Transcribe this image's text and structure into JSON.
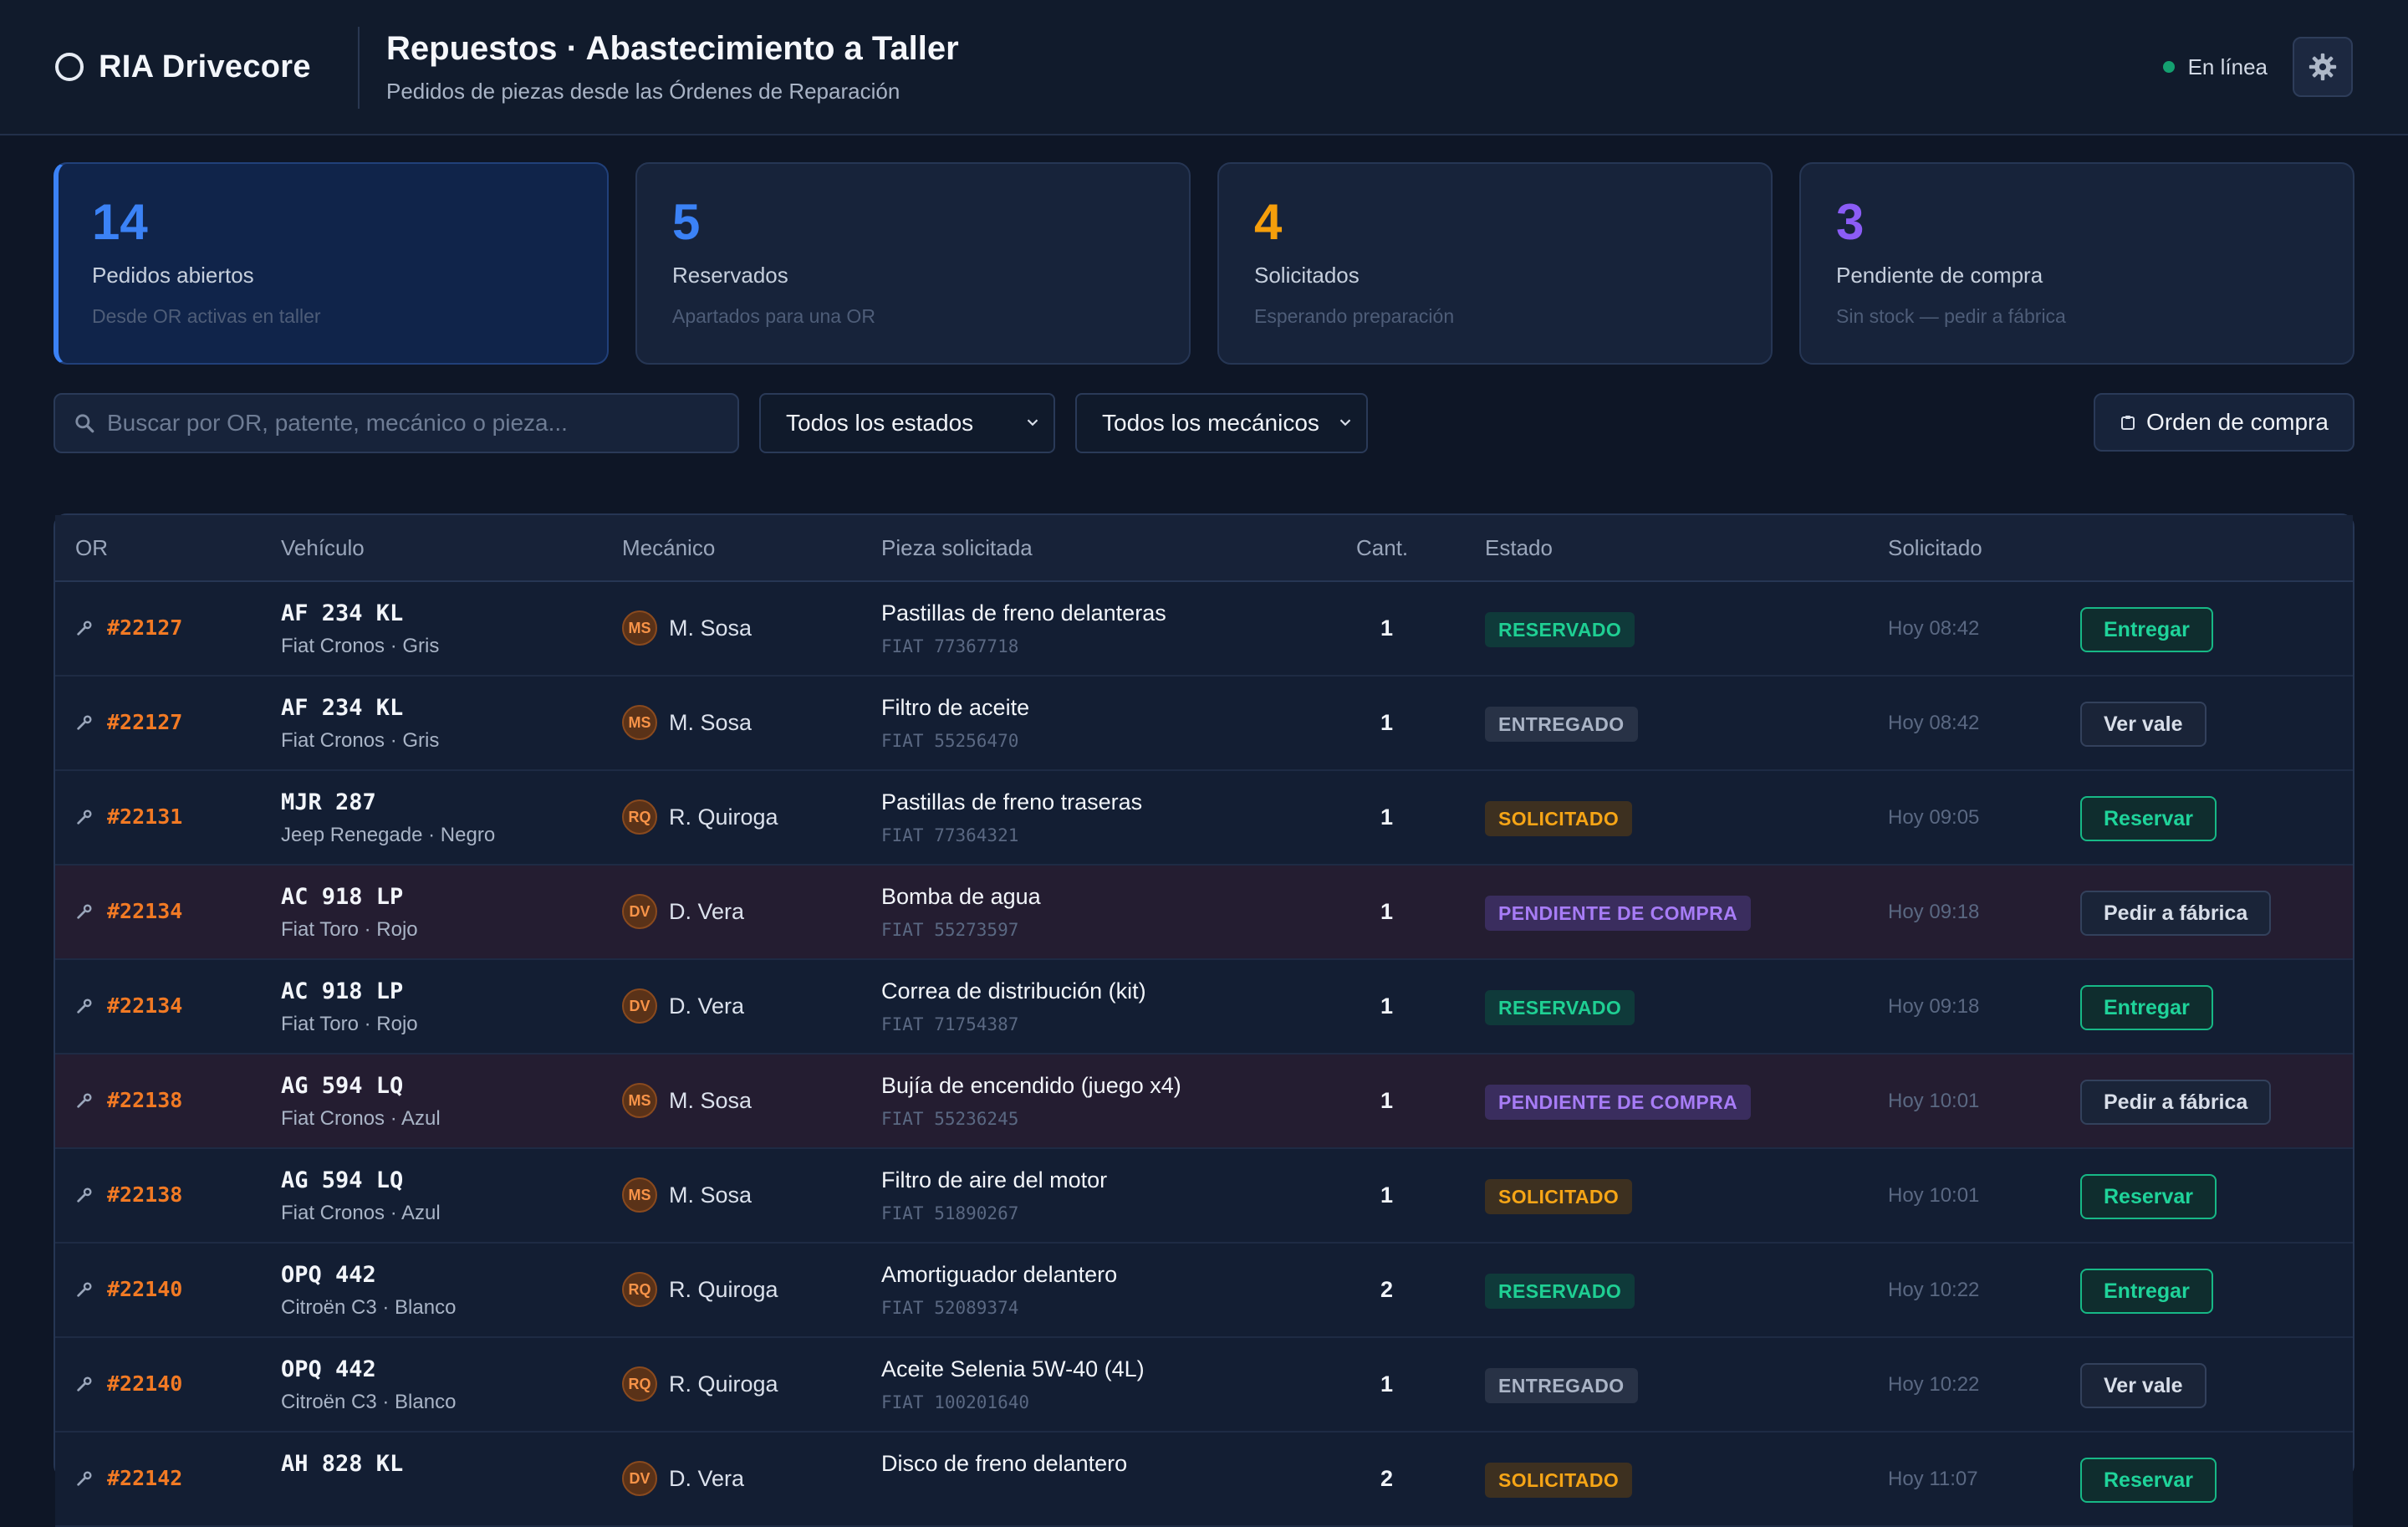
{
  "header": {
    "brand": "RIA Drivecore",
    "title": "Repuestos · Abastecimiento a Taller",
    "subtitle": "Pedidos de piezas desde las Órdenes de Reparación",
    "status": "En línea"
  },
  "kpis": [
    {
      "value": "14",
      "label": "Pedidos abiertos",
      "desc": "Desde OR activas en taller",
      "color": "#3b82f6"
    },
    {
      "value": "5",
      "label": "Reservados",
      "desc": "Apartados para una OR",
      "color": "#3b82f6"
    },
    {
      "value": "4",
      "label": "Solicitados",
      "desc": "Esperando preparación",
      "color": "#f59e0b"
    },
    {
      "value": "3",
      "label": "Pendiente de compra",
      "desc": "Sin stock — pedir a fábrica",
      "color": "#8b5cf6"
    }
  ],
  "toolbar": {
    "search_placeholder": "Buscar por OR, patente, mecánico o pieza...",
    "status_filter": "Todos los estados",
    "mechanic_filter": "Todos los mecánicos",
    "purchase_order_label": "Orden de compra"
  },
  "table": {
    "columns": {
      "or": "OR",
      "vehicle": "Vehículo",
      "mechanic": "Mecánico",
      "part": "Pieza solicitada",
      "qty": "Cant.",
      "status": "Estado",
      "requested": "Solicitado"
    },
    "rows": [
      {
        "or": "#22127",
        "plate": "AF 234 KL",
        "vehicle": "Fiat Cronos · Gris",
        "initials": "MS",
        "mechanic": "M. Sosa",
        "part": "Pastillas de freno delanteras",
        "code": "FIAT 77367718",
        "qty": "1",
        "status": "RESERVADO",
        "kind": "reservado",
        "time": "Hoy 08:42",
        "action": "Entregar"
      },
      {
        "or": "#22127",
        "plate": "AF 234 KL",
        "vehicle": "Fiat Cronos · Gris",
        "initials": "MS",
        "mechanic": "M. Sosa",
        "part": "Filtro de aceite",
        "code": "FIAT 55256470",
        "qty": "1",
        "status": "ENTREGADO",
        "kind": "entregado",
        "time": "Hoy 08:42",
        "action": "Ver vale"
      },
      {
        "or": "#22131",
        "plate": "MJR 287",
        "vehicle": "Jeep Renegade · Negro",
        "initials": "RQ",
        "mechanic": "R. Quiroga",
        "part": "Pastillas de freno traseras",
        "code": "FIAT 77364321",
        "qty": "1",
        "status": "SOLICITADO",
        "kind": "solicitado",
        "time": "Hoy 09:05",
        "action": "Reservar"
      },
      {
        "or": "#22134",
        "plate": "AC 918 LP",
        "vehicle": "Fiat Toro · Rojo",
        "initials": "DV",
        "mechanic": "D. Vera",
        "part": "Bomba de agua",
        "code": "FIAT 55273597",
        "qty": "1",
        "status": "PENDIENTE DE COMPRA",
        "kind": "pendiente",
        "time": "Hoy 09:18",
        "action": "Pedir a fábrica"
      },
      {
        "or": "#22134",
        "plate": "AC 918 LP",
        "vehicle": "Fiat Toro · Rojo",
        "initials": "DV",
        "mechanic": "D. Vera",
        "part": "Correa de distribución (kit)",
        "code": "FIAT 71754387",
        "qty": "1",
        "status": "RESERVADO",
        "kind": "reservado",
        "time": "Hoy 09:18",
        "action": "Entregar"
      },
      {
        "or": "#22138",
        "plate": "AG 594 LQ",
        "vehicle": "Fiat Cronos · Azul",
        "initials": "MS",
        "mechanic": "M. Sosa",
        "part": "Bujía de encendido (juego x4)",
        "code": "FIAT 55236245",
        "qty": "1",
        "status": "PENDIENTE DE COMPRA",
        "kind": "pendiente",
        "time": "Hoy 10:01",
        "action": "Pedir a fábrica"
      },
      {
        "or": "#22138",
        "plate": "AG 594 LQ",
        "vehicle": "Fiat Cronos · Azul",
        "initials": "MS",
        "mechanic": "M. Sosa",
        "part": "Filtro de aire del motor",
        "code": "FIAT 51890267",
        "qty": "1",
        "status": "SOLICITADO",
        "kind": "solicitado",
        "time": "Hoy 10:01",
        "action": "Reservar"
      },
      {
        "or": "#22140",
        "plate": "OPQ 442",
        "vehicle": "Citroën C3 · Blanco",
        "initials": "RQ",
        "mechanic": "R. Quiroga",
        "part": "Amortiguador delantero",
        "code": "FIAT 52089374",
        "qty": "2",
        "status": "RESERVADO",
        "kind": "reservado",
        "time": "Hoy 10:22",
        "action": "Entregar"
      },
      {
        "or": "#22140",
        "plate": "OPQ 442",
        "vehicle": "Citroën C3 · Blanco",
        "initials": "RQ",
        "mechanic": "R. Quiroga",
        "part": "Aceite Selenia 5W-40 (4L)",
        "code": "FIAT 100201640",
        "qty": "1",
        "status": "ENTREGADO",
        "kind": "entregado",
        "time": "Hoy 10:22",
        "action": "Ver vale"
      },
      {
        "or": "#22142",
        "plate": "AH 828 KL",
        "vehicle": "",
        "initials": "DV",
        "mechanic": "D. Vera",
        "part": "Disco de freno delantero",
        "code": "",
        "qty": "2",
        "status": "SOLICITADO",
        "kind": "solicitado",
        "time": "Hoy 11:07",
        "action": "Reservar"
      }
    ]
  }
}
